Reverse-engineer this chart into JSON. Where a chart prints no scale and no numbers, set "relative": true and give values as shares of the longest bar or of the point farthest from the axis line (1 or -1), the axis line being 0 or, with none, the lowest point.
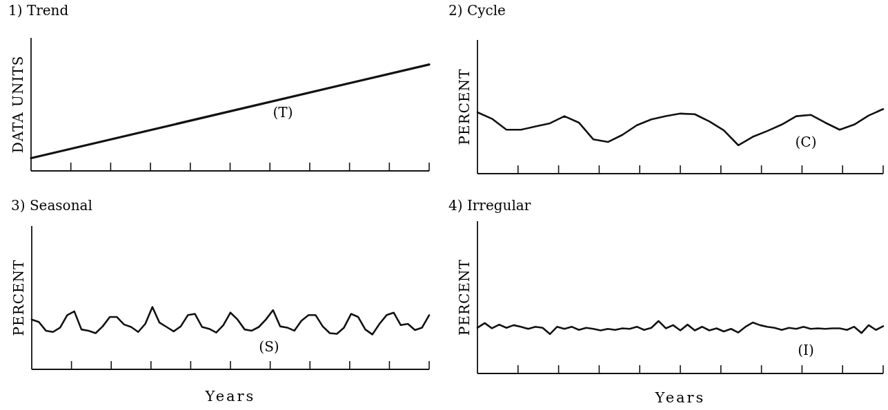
{
  "chart_data": [
    {
      "type": "line",
      "title": "1) Trend",
      "ylabel": "DATA UNITS",
      "relative": true,
      "annotations": [
        "(T)"
      ],
      "categories": [
        null,
        null
      ],
      "series": [
        {
          "color": "#111111",
          "values": [
            0.12,
            1
          ]
        }
      ]
    },
    {
      "type": "line",
      "title": "2) Cycle",
      "ylabel": "PERCENT",
      "relative": true,
      "annotations": [
        "(C)"
      ],
      "categories": [
        null,
        null,
        null,
        null,
        null,
        null,
        null,
        null,
        null,
        null,
        null,
        null,
        null,
        null,
        null,
        null,
        null,
        null,
        null,
        null,
        null,
        null,
        null,
        null,
        null,
        null,
        null,
        null,
        null
      ],
      "series": [
        {
          "color": "#111111",
          "values": [
            0.95,
            0.85,
            0.68,
            0.68,
            0.73,
            0.78,
            0.89,
            0.79,
            0.53,
            0.49,
            0.6,
            0.75,
            0.84,
            0.89,
            0.93,
            0.92,
            0.81,
            0.67,
            0.44,
            0.57,
            0.66,
            0.76,
            0.89,
            0.91,
            0.79,
            0.68,
            0.76,
            0.9,
            1
          ]
        }
      ]
    },
    {
      "type": "line",
      "title": "3) Seasonal",
      "ylabel": "PERCENT",
      "xlabel": "Years",
      "relative": true,
      "annotations": [
        "(S)"
      ],
      "categories": [
        null,
        null,
        null,
        null,
        null,
        null,
        null,
        null,
        null,
        null,
        null,
        null,
        null,
        null,
        null,
        null,
        null,
        null,
        null,
        null,
        null,
        null,
        null,
        null,
        null,
        null,
        null,
        null,
        null,
        null,
        null,
        null,
        null,
        null,
        null,
        null,
        null,
        null,
        null,
        null,
        null,
        null,
        null,
        null,
        null,
        null,
        null,
        null,
        null,
        null,
        null,
        null,
        null,
        null,
        null,
        null,
        null
      ],
      "series": [
        {
          "color": "#111111",
          "values": [
            0.8,
            0.76,
            0.62,
            0.6,
            0.67,
            0.87,
            0.93,
            0.64,
            0.62,
            0.58,
            0.69,
            0.84,
            0.84,
            0.72,
            0.68,
            0.6,
            0.73,
            1,
            0.75,
            0.68,
            0.61,
            0.69,
            0.87,
            0.89,
            0.68,
            0.65,
            0.59,
            0.71,
            0.91,
            0.8,
            0.64,
            0.62,
            0.68,
            0.8,
            0.95,
            0.69,
            0.67,
            0.62,
            0.78,
            0.87,
            0.87,
            0.69,
            0.58,
            0.57,
            0.67,
            0.89,
            0.84,
            0.64,
            0.56,
            0.73,
            0.87,
            0.91,
            0.71,
            0.73,
            0.63,
            0.67,
            0.87
          ]
        }
      ]
    },
    {
      "type": "line",
      "title": "4) Irregular",
      "ylabel": "PERCENT",
      "xlabel": "Years",
      "relative": true,
      "annotations": [
        "(I)"
      ],
      "categories": [
        null,
        null,
        null,
        null,
        null,
        null,
        null,
        null,
        null,
        null,
        null,
        null,
        null,
        null,
        null,
        null,
        null,
        null,
        null,
        null,
        null,
        null,
        null,
        null,
        null,
        null,
        null,
        null,
        null,
        null,
        null,
        null,
        null,
        null,
        null,
        null,
        null,
        null,
        null,
        null,
        null,
        null,
        null,
        null,
        null,
        null,
        null,
        null,
        null,
        null,
        null,
        null,
        null,
        null,
        null,
        null,
        null
      ],
      "series": [
        {
          "color": "#111111",
          "values": [
            0.87,
            0.96,
            0.86,
            0.93,
            0.87,
            0.92,
            0.89,
            0.85,
            0.89,
            0.87,
            0.75,
            0.89,
            0.85,
            0.89,
            0.83,
            0.87,
            0.85,
            0.82,
            0.85,
            0.83,
            0.86,
            0.85,
            0.89,
            0.83,
            0.87,
            1,
            0.86,
            0.92,
            0.82,
            0.93,
            0.82,
            0.89,
            0.82,
            0.86,
            0.8,
            0.85,
            0.78,
            0.89,
            0.97,
            0.92,
            0.89,
            0.87,
            0.83,
            0.87,
            0.85,
            0.89,
            0.85,
            0.86,
            0.85,
            0.86,
            0.86,
            0.83,
            0.89,
            0.77,
            0.92,
            0.83,
            0.9
          ]
        }
      ]
    }
  ]
}
